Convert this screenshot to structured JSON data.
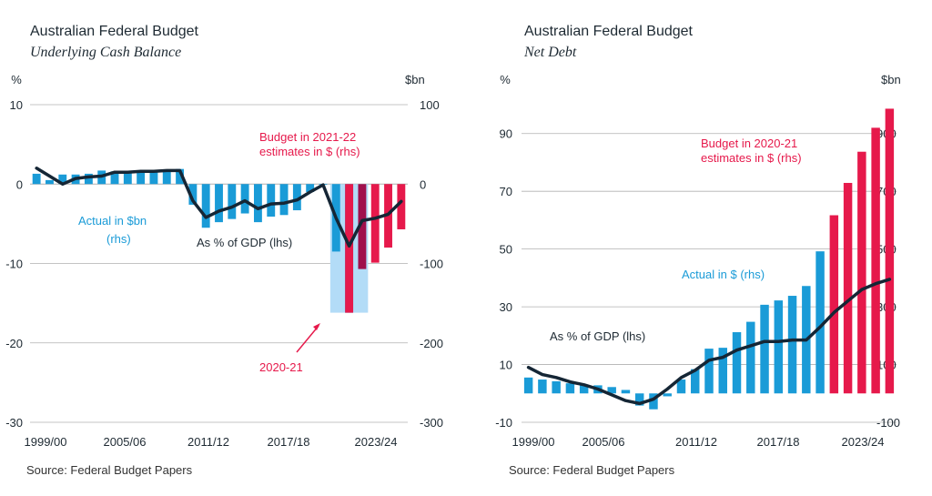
{
  "colors": {
    "actual": "#1a9bd7",
    "budget": "#e6194b",
    "overlap": "#a0104c",
    "highlight": "#b3dcf7",
    "line": "#152635",
    "grid": "#b0b0b0"
  },
  "source_note": "Source: Federal Budget Papers",
  "chart_data": [
    {
      "type": "bar",
      "title": "Australian Federal Budget",
      "subtitle": "Underlying Cash Balance",
      "ylabel_left": "%",
      "ylabel_right": "$bn",
      "ylim_left": [
        -30,
        10
      ],
      "ylim_right": [
        -300,
        100
      ],
      "yticks_left": [
        "10",
        "0",
        "-10",
        "-20",
        "-30"
      ],
      "yticks_right": [
        "100",
        "0",
        "-100",
        "-200",
        "-300"
      ],
      "xtick_labels": [
        "1999/00",
        "2005/06",
        "2011/12",
        "2017/18",
        "2023/24"
      ],
      "categories": [
        "1996/97",
        "1997/98",
        "1998/99",
        "1999/00",
        "2000/01",
        "2001/02",
        "2002/03",
        "2003/04",
        "2004/05",
        "2005/06",
        "2006/07",
        "2007/08",
        "2008/09",
        "2009/10",
        "2010/11",
        "2011/12",
        "2012/13",
        "2013/14",
        "2014/15",
        "2015/16",
        "2016/17",
        "2017/18",
        "2018/19",
        "2019/20",
        "2020/21",
        "2021/22",
        "2022/23",
        "2023/24",
        "2024/25"
      ],
      "series": [
        {
          "name": "Actual in $bn (rhs)",
          "values": [
            13,
            5,
            12,
            12,
            13,
            17,
            16,
            16,
            17,
            17,
            18,
            19,
            -26,
            -55,
            -48,
            -44,
            -37,
            -48,
            -41,
            -39,
            -33,
            -10,
            -1,
            -85,
            -162,
            null,
            null,
            null,
            null
          ]
        },
        {
          "name": "Budget in 2021-22 estimates in $ (rhs)",
          "values": [
            null,
            null,
            null,
            null,
            null,
            null,
            null,
            null,
            null,
            null,
            null,
            null,
            null,
            null,
            null,
            null,
            null,
            null,
            null,
            null,
            null,
            null,
            null,
            null,
            -162,
            -107,
            -99,
            -80,
            -57
          ]
        },
        {
          "name": "As % of GDP (lhs)",
          "values": [
            2,
            1,
            0,
            0.7,
            0.9,
            1,
            1.5,
            1.5,
            1.6,
            1.6,
            1.7,
            1.7,
            -2.1,
            -4.2,
            -3.4,
            -2.9,
            -2.1,
            -3.1,
            -2.5,
            -2.4,
            -2.0,
            -1.0,
            -0.1,
            -4.3,
            -7.8,
            -4.6,
            -4.3,
            -3.8,
            -2.2
          ]
        }
      ],
      "highlight": {
        "label": "2020-21",
        "range": [
          "2019/20",
          "2020/21"
        ],
        "bottom_rhs": -162
      },
      "annotations": [
        "Budget in 2021-22 estimates in $ (rhs)",
        "Actual in $bn (rhs)",
        "As % of GDP (lhs)",
        "2020-21"
      ],
      "grid": true,
      "legend": "none"
    },
    {
      "type": "bar",
      "title": "Australian Federal Budget",
      "subtitle": "Net Debt",
      "ylabel_left": "%",
      "ylabel_right": "$bn",
      "ylim_left": [
        -10,
        100
      ],
      "ylim_right": [
        -100,
        1000
      ],
      "yticks_left": [
        "90",
        "70",
        "50",
        "30",
        "10",
        "-10"
      ],
      "yticks_right": [
        "900",
        "700",
        "500",
        "300",
        "100",
        "-100"
      ],
      "xtick_labels": [
        "1999/00",
        "2005/06",
        "2011/12",
        "2017/18",
        "2023/24"
      ],
      "categories": [
        "1998/99",
        "1999/00",
        "2000/01",
        "2001/02",
        "2002/03",
        "2003/04",
        "2004/05",
        "2005/06",
        "2006/07",
        "2007/08",
        "2008/09",
        "2009/10",
        "2010/11",
        "2011/12",
        "2012/13",
        "2013/14",
        "2014/15",
        "2015/16",
        "2016/17",
        "2017/18",
        "2018/19",
        "2019/20",
        "2020/21",
        "2021/22",
        "2022/23",
        "2023/24",
        "2024/25"
      ],
      "series": [
        {
          "name": "Actual in $ (rhs)",
          "values": [
            55,
            48,
            42,
            35,
            31,
            28,
            22,
            12,
            -42,
            -55,
            -10,
            48,
            84,
            155,
            158,
            212,
            248,
            307,
            322,
            338,
            372,
            492,
            null,
            null,
            null,
            null,
            null
          ]
        },
        {
          "name": "Budget in 2020-21 estimates in $ (rhs)",
          "values": [
            null,
            null,
            null,
            null,
            null,
            null,
            null,
            null,
            null,
            null,
            null,
            null,
            null,
            null,
            null,
            null,
            null,
            null,
            null,
            null,
            null,
            null,
            617,
            729,
            837,
            920,
            986
          ]
        },
        {
          "name": "As % of GDP (lhs)",
          "values": [
            9,
            6.5,
            5.5,
            4,
            3,
            1.5,
            -0.5,
            -2.5,
            -3.5,
            -2,
            1.5,
            5.5,
            8,
            11.5,
            12.5,
            15,
            16.5,
            18,
            18,
            18.5,
            18.5,
            23,
            28,
            32,
            36,
            38,
            39.5
          ]
        }
      ],
      "annotations": [
        "Budget in 2020-21 estimates in $ (rhs)",
        "Actual in $ (rhs)",
        "As % of GDP (lhs)"
      ],
      "grid": true,
      "legend": "none"
    }
  ]
}
